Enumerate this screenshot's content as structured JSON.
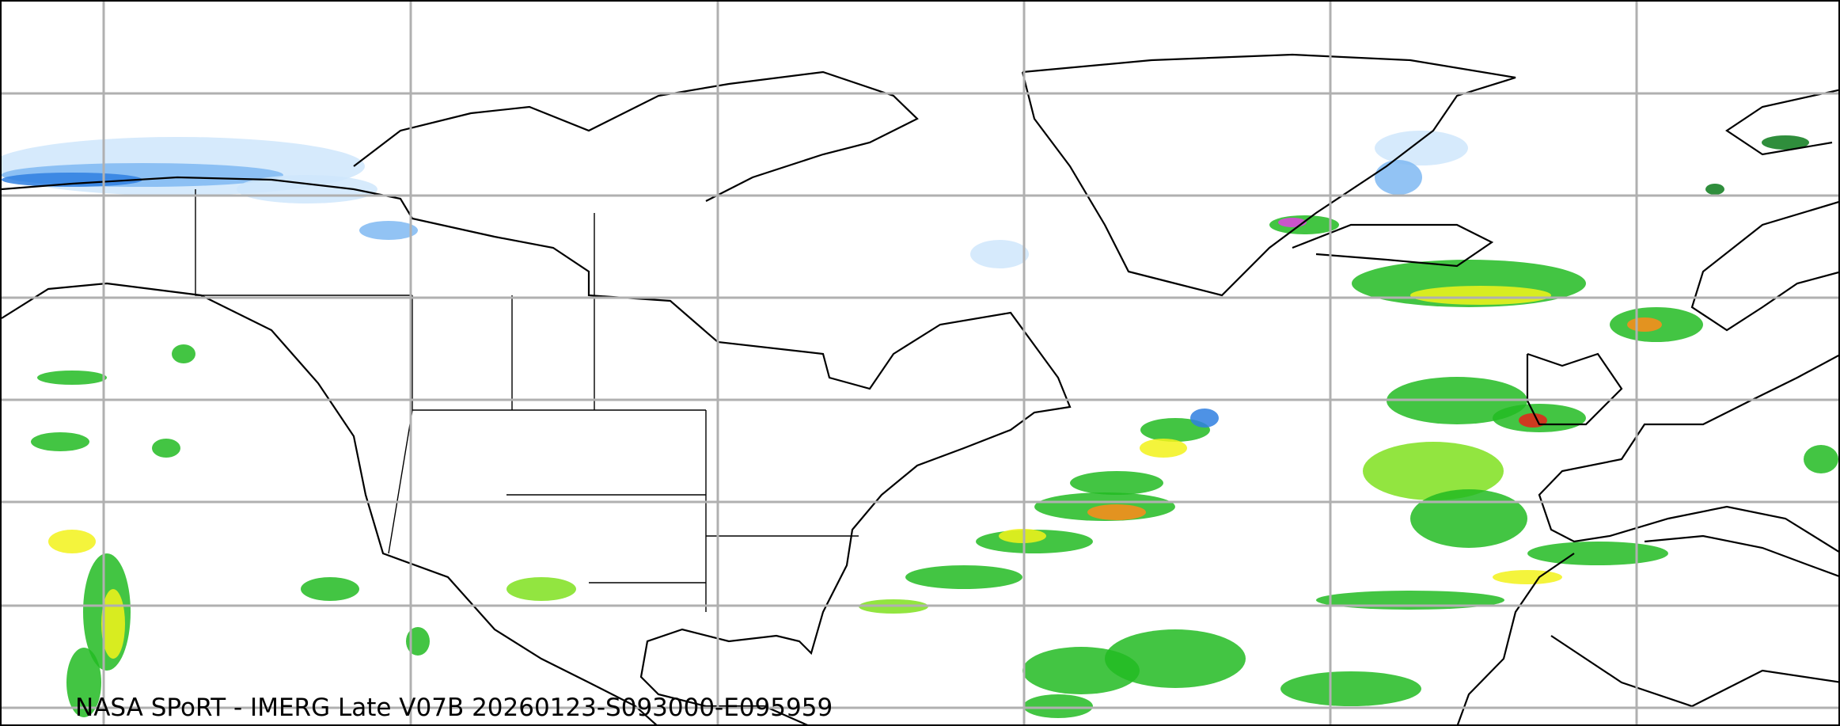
{
  "map": {
    "caption": "NASA SPoRT - IMERG Late V07B 20260123-S093000-E095959",
    "projection": "equirectangular",
    "gridlines": true,
    "colors": {
      "gridline": "#b0b0b0",
      "coastline": "#000000",
      "snow_light": "#cfe6fb",
      "snow_mid": "#7fb9f2",
      "snow_heavy": "#2f7fe0",
      "rain_light": "#22bb22",
      "rain_moderate": "#7fe01f",
      "rain_heavy": "#f2f21a",
      "rain_very_heavy": "#ff8a1a",
      "rain_extreme": "#e8201a",
      "mixed": "#e040e0",
      "dark_green": "#0b7a1a"
    }
  }
}
